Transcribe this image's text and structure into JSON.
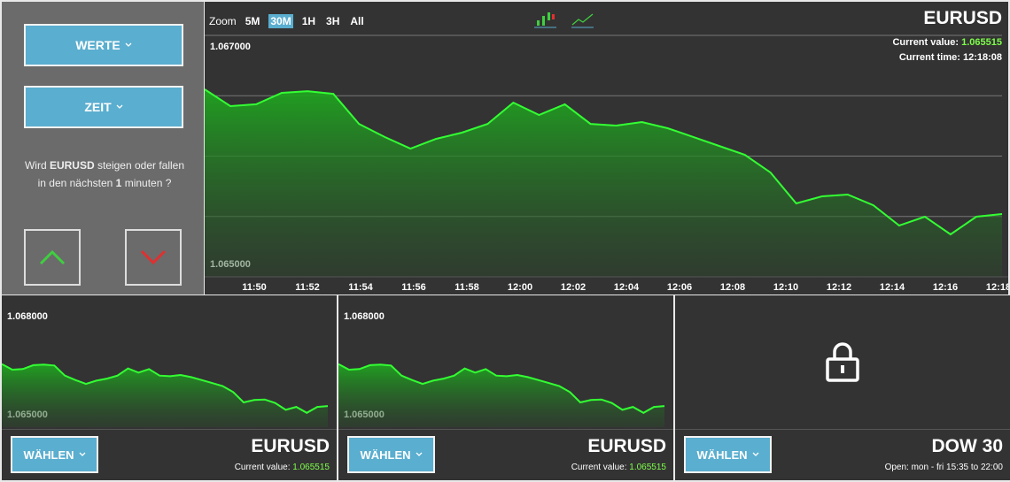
{
  "sidebar": {
    "buttons": [
      "WERTE",
      "ZEIT"
    ],
    "question": [
      "Wird ",
      "EURUSD",
      " steigen oder fallen in den nächsten ",
      "1",
      " minuten ?"
    ]
  },
  "main": {
    "zoom_label": "Zoom",
    "zoom_options": [
      "5M",
      "30M",
      "1H",
      "3H",
      "All"
    ],
    "zoom_active": "30M",
    "symbol": "EURUSD",
    "current_value_label": "Current value:",
    "current_value": "1.065515",
    "current_time_label": "Current time:",
    "current_time": "12:18:08",
    "chart": {
      "type": "area",
      "color": "#33ff33",
      "ylim": [
        1.065,
        1.067
      ],
      "yticks": [
        {
          "value": 1.067,
          "label": "1.067000"
        },
        {
          "value": 1.065,
          "label": "1.065000"
        }
      ],
      "gridlines": [
        1.0665,
        1.066,
        1.0655
      ],
      "xticks": [
        "11:50",
        "11:52",
        "11:54",
        "11:56",
        "11:58",
        "12:00",
        "12:02",
        "12:04",
        "12:06",
        "12:08",
        "12:10",
        "12:12",
        "12:14",
        "12:16",
        "12:18"
      ],
      "values": [
        1.066553,
        1.066414,
        1.066429,
        1.066524,
        1.066538,
        1.066516,
        1.066267,
        1.066158,
        1.066062,
        1.066143,
        1.066194,
        1.066267,
        1.066443,
        1.066341,
        1.066429,
        1.066267,
        1.066253,
        1.066282,
        1.066231,
        1.066158,
        1.066084,
        1.066011,
        1.065864,
        1.065608,
        1.065667,
        1.065681,
        1.065593,
        1.065425,
        1.065498,
        1.065352,
        1.065498,
        1.06552
      ]
    }
  },
  "panels": [
    {
      "button": "WÄHLEN",
      "symbol": "EURUSD",
      "info_label": "Current value:",
      "info_value": "1.065515",
      "locked": false,
      "chart": {
        "type": "area",
        "color": "#33ff33",
        "ylim": [
          1.065,
          1.068
        ],
        "yticks": [
          {
            "value": 1.068,
            "label": "1.068000"
          },
          {
            "value": 1.065,
            "label": "1.065000"
          }
        ],
        "values": [
          1.066553,
          1.066414,
          1.066429,
          1.066524,
          1.066538,
          1.066516,
          1.066267,
          1.066158,
          1.066062,
          1.066143,
          1.066194,
          1.066267,
          1.066443,
          1.066341,
          1.066429,
          1.066267,
          1.066253,
          1.066282,
          1.066231,
          1.066158,
          1.066084,
          1.066011,
          1.065864,
          1.065608,
          1.065667,
          1.065681,
          1.065593,
          1.065425,
          1.065498,
          1.065352,
          1.065498,
          1.06552
        ]
      }
    },
    {
      "button": "WÄHLEN",
      "symbol": "EURUSD",
      "info_label": "Current value:",
      "info_value": "1.065515",
      "locked": false,
      "chart": {
        "type": "area",
        "color": "#33ff33",
        "ylim": [
          1.065,
          1.068
        ],
        "yticks": [
          {
            "value": 1.068,
            "label": "1.068000"
          },
          {
            "value": 1.065,
            "label": "1.065000"
          }
        ],
        "values": [
          1.066553,
          1.066414,
          1.066429,
          1.066524,
          1.066538,
          1.066516,
          1.066267,
          1.066158,
          1.066062,
          1.066143,
          1.066194,
          1.066267,
          1.066443,
          1.066341,
          1.066429,
          1.066267,
          1.066253,
          1.066282,
          1.066231,
          1.066158,
          1.066084,
          1.066011,
          1.065864,
          1.065608,
          1.065667,
          1.065681,
          1.065593,
          1.065425,
          1.065498,
          1.065352,
          1.065498,
          1.06552
        ]
      }
    },
    {
      "button": "WÄHLEN",
      "symbol": "DOW 30",
      "info": "Open: mon - fri 15:35 to 22:00",
      "locked": true
    }
  ]
}
